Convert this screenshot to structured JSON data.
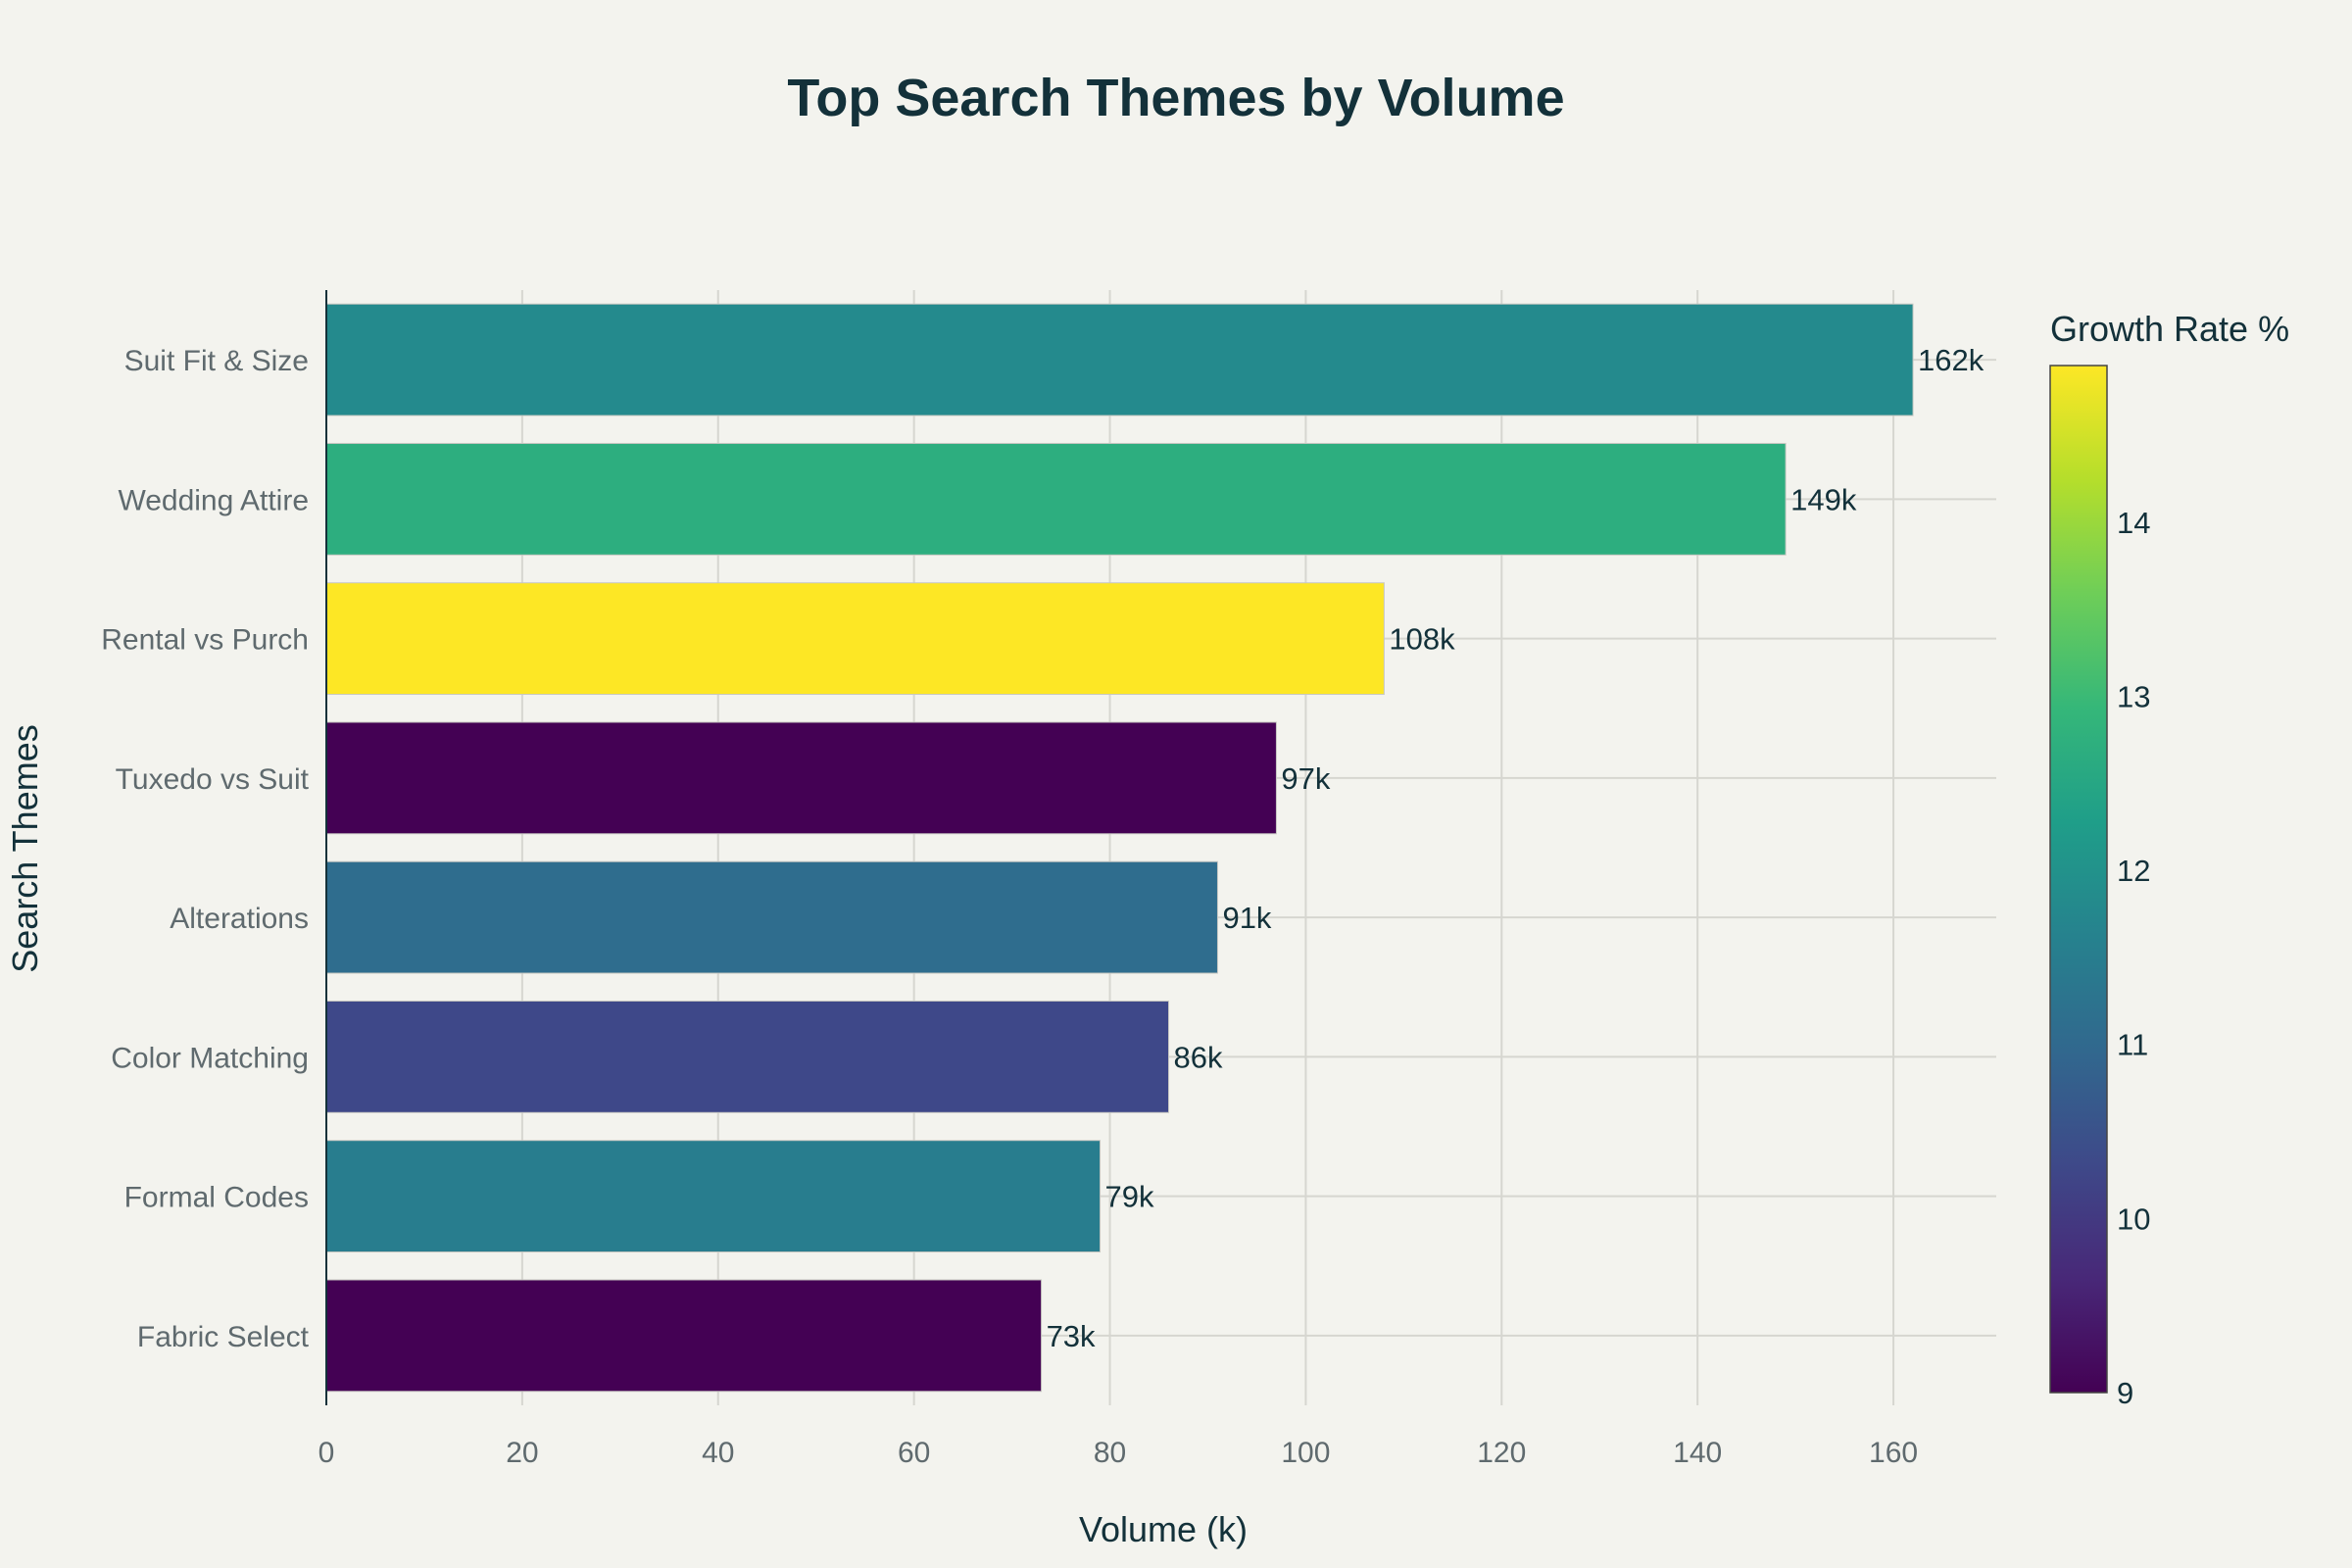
{
  "chart_data": {
    "type": "bar",
    "orientation": "horizontal",
    "title": "Top Search Themes by Volume",
    "xlabel": "Volume (k)",
    "ylabel": "Search Themes",
    "xlim": [
      0,
      170.5
    ],
    "xticks": [
      0,
      20,
      40,
      60,
      80,
      100,
      120,
      140,
      160
    ],
    "grid": true,
    "categories": [
      "Suit Fit & Size",
      "Wedding Attire",
      "Rental vs Purch",
      "Tuxedo vs Suit",
      "Alterations",
      "Color Matching",
      "Formal Codes",
      "Fabric Select"
    ],
    "values": [
      162,
      149,
      108,
      97,
      91,
      86,
      79,
      73
    ],
    "labels": [
      "162k",
      "149k",
      "108k",
      "97k",
      "91k",
      "86k",
      "79k",
      "73k"
    ],
    "growth_rate": [
      11.8,
      12.7,
      14.9,
      9.0,
      11.1,
      10.3,
      11.5,
      9.0
    ],
    "colorbar": {
      "title": "Growth Rate %",
      "range": [
        9,
        14.9
      ],
      "ticks": [
        9,
        10,
        11,
        12,
        13,
        14
      ],
      "colorscale": [
        "#440154",
        "#482878",
        "#3e4989",
        "#31688e",
        "#26828e",
        "#1f9e89",
        "#35b779",
        "#6ece58",
        "#b5de2b",
        "#fde725"
      ]
    }
  }
}
